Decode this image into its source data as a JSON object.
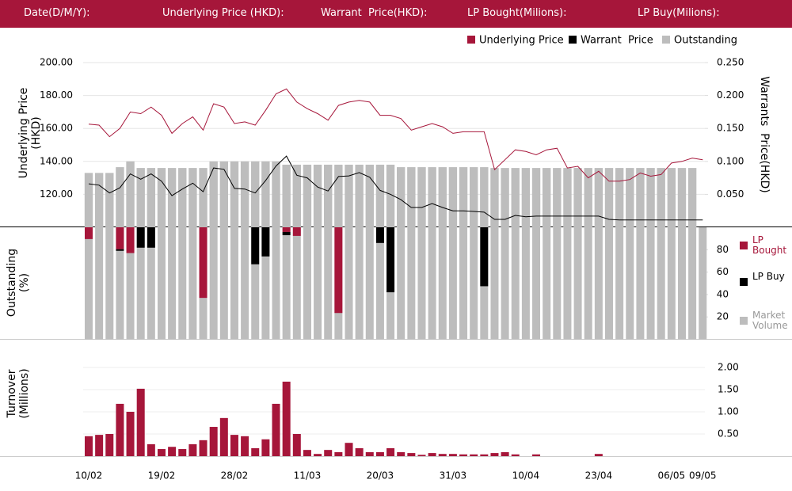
{
  "header": [
    "Date(D/M/Y):",
    "Underlying Price (HKD):",
    "Warrant  Price(HKD):",
    "LP Bought(Milions):",
    "LP Buy(Milions):"
  ],
  "chart_data": [
    {
      "type": "line",
      "ylabel": [
        "Underlying Price",
        "(HKD)"
      ],
      "y2label": "Warrants  Price(HKD)",
      "ylim": [
        100,
        200
      ],
      "yticks": [
        {
          "value": 120,
          "label": "120.00"
        },
        {
          "value": 140,
          "label": "140.00"
        },
        {
          "value": 160,
          "label": "160.00"
        },
        {
          "value": 180,
          "label": "180.00"
        },
        {
          "value": 200,
          "label": "200.00"
        }
      ],
      "y2lim": [
        0,
        0.25
      ],
      "y2ticks": [
        {
          "value": 0.05,
          "label": "0.050"
        },
        {
          "value": 0.1,
          "label": "0.100"
        },
        {
          "value": 0.15,
          "label": "0.150"
        },
        {
          "value": 0.2,
          "label": "0.200"
        },
        {
          "value": 0.25,
          "label": "0.250"
        }
      ],
      "grid": true,
      "series": [
        {
          "name": "Underlying Price",
          "color": "#a6163a",
          "values": [
            162.6,
            162,
            155,
            160,
            170,
            169,
            173,
            168,
            157,
            163,
            167,
            159,
            175,
            173,
            163,
            164,
            162,
            171,
            181,
            184,
            176,
            172,
            169,
            165,
            174,
            176,
            177,
            176,
            168,
            168,
            166,
            159,
            161,
            163,
            161,
            157,
            158,
            158,
            158,
            135,
            141,
            147,
            146,
            144,
            147,
            148,
            136,
            137,
            130,
            134,
            128,
            128,
            129,
            133,
            131,
            132,
            139,
            140,
            142,
            141
          ]
        },
        {
          "name": "Warrant  Price",
          "color": "#000000",
          "axis": "y2",
          "values": [
            0.066,
            0.064,
            0.052,
            0.06,
            0.081,
            0.073,
            0.081,
            0.07,
            0.048,
            0.058,
            0.067,
            0.054,
            0.09,
            0.088,
            0.059,
            0.058,
            0.052,
            0.071,
            0.093,
            0.108,
            0.079,
            0.075,
            0.061,
            0.055,
            0.077,
            0.078,
            0.083,
            0.076,
            0.056,
            0.05,
            0.042,
            0.03,
            0.03,
            0.036,
            0.03,
            0.025,
            0.025,
            0.024,
            0.023,
            0.012,
            0.012,
            0.018,
            0.016,
            0.017,
            0.017,
            0.017,
            0.017,
            0.017,
            0.017,
            0.017,
            0.012,
            0.011,
            0.011,
            0.011,
            0.011,
            0.011,
            0.011,
            0.011,
            0.011,
            0.011
          ]
        },
        {
          "name": "Outstanding",
          "color": "#bdbdbd",
          "type": "bar",
          "values": [
            133,
            133,
            133,
            136.5,
            140,
            136,
            136,
            136,
            136,
            136,
            136,
            136,
            140,
            140,
            140,
            140,
            140,
            140,
            140,
            138,
            138,
            138,
            138,
            138,
            138,
            138,
            138,
            138,
            138,
            138,
            136.5,
            136.5,
            136.5,
            136.5,
            136.5,
            136.5,
            136.5,
            136.5,
            136.5,
            136,
            136,
            136,
            136,
            136,
            136,
            136,
            136,
            136,
            136,
            136,
            136,
            136,
            136,
            136,
            136,
            136,
            136,
            136,
            136,
            null
          ]
        }
      ]
    },
    {
      "type": "bar",
      "ylabel": [
        "Outstanding",
        "(%)"
      ],
      "ylim": [
        0,
        100
      ],
      "yticks": [
        20,
        40,
        60,
        80
      ],
      "series": [
        {
          "name": "LP Bought",
          "color": "#a6163a",
          "stack_from": "top",
          "values": [
            10.5,
            null,
            null,
            19.6,
            23,
            null,
            null,
            null,
            null,
            null,
            null,
            63,
            null,
            null,
            null,
            null,
            null,
            null,
            null,
            4.2,
            7.7,
            null,
            null,
            null,
            76.5,
            null,
            null,
            null,
            null,
            null,
            null,
            null,
            null,
            null,
            null,
            null,
            null,
            null,
            null,
            null,
            null,
            null,
            null,
            null,
            null,
            null,
            null,
            null,
            null,
            null,
            null,
            null,
            null,
            null,
            null,
            null,
            null,
            null,
            null,
            null
          ]
        },
        {
          "name": "LP Buy",
          "color": "#000000",
          "stack_from": "top",
          "values": [
            null,
            null,
            null,
            1.4,
            null,
            18.2,
            18.2,
            null,
            null,
            null,
            null,
            null,
            null,
            null,
            null,
            null,
            33,
            26,
            null,
            2.8,
            null,
            null,
            null,
            null,
            null,
            null,
            null,
            null,
            14,
            58,
            null,
            null,
            null,
            null,
            null,
            null,
            null,
            null,
            52.6,
            null,
            null,
            null,
            null,
            null,
            null,
            null,
            null,
            null,
            null,
            null,
            null,
            null,
            null,
            null,
            null,
            null,
            null,
            null,
            null,
            null
          ]
        },
        {
          "name": "Market Volume",
          "color": "#bdbdbd",
          "values": [
            100,
            100,
            100,
            100,
            100,
            100,
            100,
            100,
            100,
            100,
            100,
            100,
            100,
            100,
            100,
            100,
            100,
            100,
            100,
            100,
            100,
            100,
            100,
            100,
            100,
            100,
            100,
            100,
            100,
            100,
            100,
            100,
            100,
            100,
            100,
            100,
            100,
            100,
            100,
            100,
            100,
            100,
            100,
            100,
            100,
            100,
            100,
            100,
            100,
            100,
            100,
            100,
            100,
            100,
            100,
            100,
            100,
            100,
            100,
            100
          ]
        }
      ]
    },
    {
      "type": "bar",
      "ylabel": [
        "Turnover",
        "(Millions)"
      ],
      "ylim": [
        0,
        2
      ],
      "yticks": [
        {
          "value": 0.5,
          "label": "0.50"
        },
        {
          "value": 1,
          "label": "1.00"
        },
        {
          "value": 1.5,
          "label": "1.50"
        },
        {
          "value": 2,
          "label": "2.00"
        }
      ],
      "grid": true,
      "color": "#a6163a",
      "categories": [
        "10/02",
        null,
        null,
        null,
        null,
        null,
        null,
        "19/02",
        null,
        null,
        null,
        null,
        null,
        null,
        "28/02",
        null,
        null,
        null,
        null,
        null,
        null,
        "11/03",
        null,
        null,
        null,
        null,
        null,
        null,
        "20/03",
        null,
        null,
        null,
        null,
        null,
        null,
        "31/03",
        null,
        null,
        null,
        null,
        null,
        null,
        "10/04",
        null,
        null,
        null,
        null,
        null,
        null,
        "23/04",
        null,
        null,
        null,
        null,
        null,
        null,
        "06/05",
        null,
        null,
        "09/05"
      ],
      "values": [
        0.45,
        0.48,
        0.5,
        1.18,
        1.0,
        1.52,
        0.27,
        0.16,
        0.21,
        0.16,
        0.27,
        0.36,
        0.66,
        0.86,
        0.48,
        0.45,
        0.18,
        0.38,
        1.18,
        1.68,
        0.5,
        0.14,
        0.05,
        0.14,
        0.09,
        0.3,
        0.18,
        0.09,
        0.09,
        0.18,
        0.09,
        0.07,
        0.03,
        0.07,
        0.05,
        0.05,
        0.04,
        0.04,
        0.04,
        0.07,
        0.09,
        0.04,
        0,
        0.04,
        0,
        0,
        0,
        0,
        0,
        0.05,
        0,
        0,
        0,
        0,
        0,
        0,
        0,
        0,
        0,
        0
      ]
    }
  ]
}
